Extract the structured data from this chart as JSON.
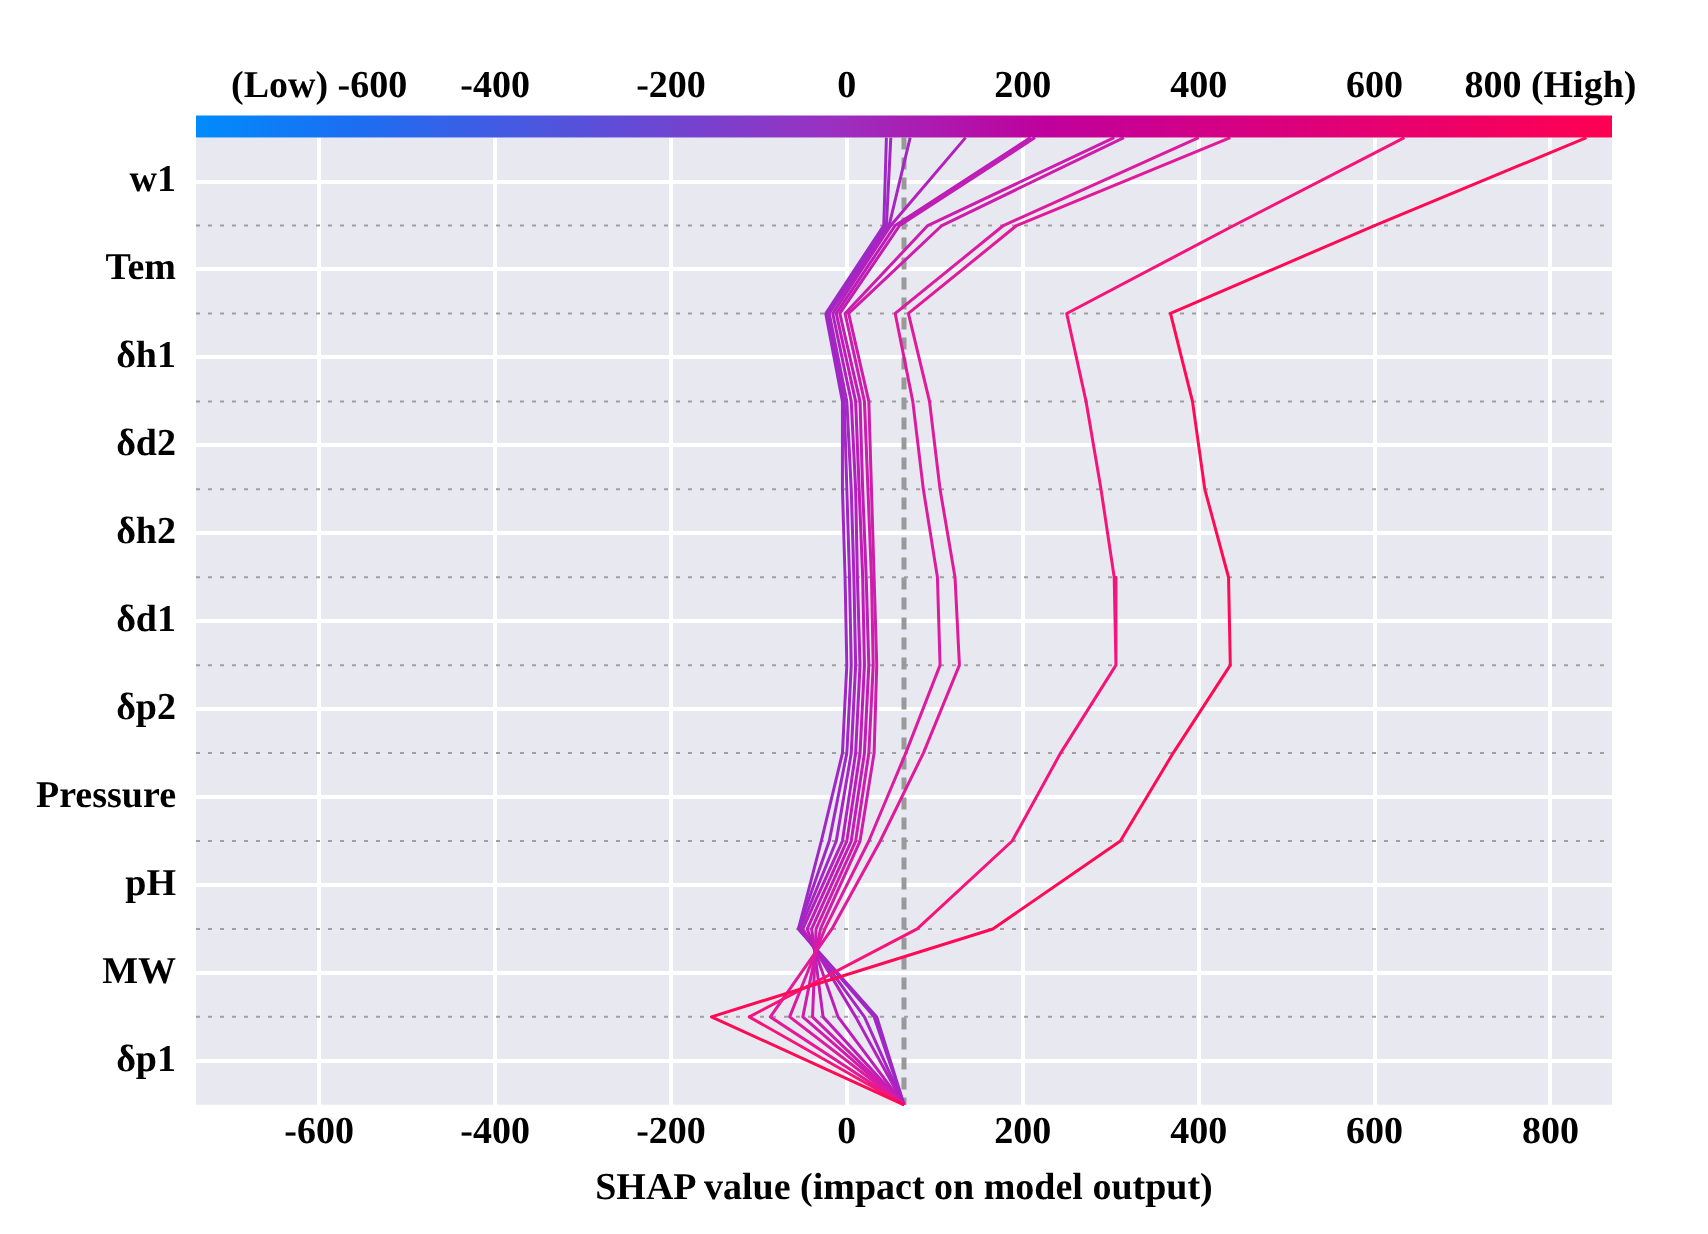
{
  "chart_data": {
    "type": "line",
    "orientation": "horizontal",
    "xlabel": "SHAP value (impact on model output)",
    "categories": [
      null,
      "w1",
      null,
      "Tem",
      null,
      "δh1",
      null,
      "δd2",
      null,
      "δh2",
      null,
      "δd1",
      null,
      "δp2",
      null,
      "Pressure",
      null,
      "pH",
      null,
      "MW",
      null,
      "δp1",
      null
    ],
    "xlim": [
      -740,
      870
    ],
    "xticks": [
      -600,
      -400,
      -200,
      0,
      200,
      400,
      600,
      800
    ],
    "x2lim": [
      -740,
      870
    ],
    "x2ticks": [
      {
        "value": -600,
        "label": "(Low) -600"
      },
      -400,
      -200,
      0,
      200,
      400,
      600,
      {
        "value": 800,
        "label": "800 (High)"
      }
    ],
    "grid": true,
    "legend": false,
    "marker": "none",
    "line_style": "solid",
    "ref_lines": [
      {
        "axis": "x",
        "value": 65,
        "color": "#999999",
        "line_style": "dashed"
      }
    ],
    "series": [
      {
        "color": "#ff0a55",
        "values": [
          841,
          null,
          600,
          null,
          368,
          null,
          393,
          null,
          407,
          null,
          434,
          null,
          436,
          null,
          371,
          null,
          311,
          null,
          166,
          null,
          -154,
          null,
          65
        ]
      },
      {
        "color": "#f5157a",
        "values": [
          634,
          null,
          440,
          null,
          250,
          null,
          272,
          null,
          289,
          null,
          304,
          null,
          306,
          null,
          243,
          null,
          188,
          null,
          80,
          null,
          -111,
          null,
          65
        ]
      },
      {
        "color": "#e01a98",
        "values": [
          436,
          null,
          193,
          null,
          70,
          null,
          94,
          null,
          106,
          null,
          123,
          null,
          128,
          null,
          87,
          null,
          38,
          null,
          -17,
          null,
          -87,
          null,
          65
        ]
      },
      {
        "color": "#db1c9f",
        "values": [
          400,
          null,
          178,
          null,
          55,
          null,
          75,
          null,
          87,
          null,
          103,
          null,
          106,
          null,
          67,
          null,
          25,
          null,
          -25,
          null,
          -65,
          null,
          65
        ]
      },
      {
        "color": "#cf1dab",
        "values": [
          315,
          null,
          108,
          null,
          2,
          null,
          25,
          null,
          28,
          null,
          31,
          null,
          34,
          null,
          31,
          null,
          15,
          null,
          -30,
          null,
          -50,
          null,
          65
        ]
      },
      {
        "color": "#cd1dac",
        "values": [
          304,
          null,
          92,
          null,
          -2,
          null,
          20,
          null,
          24,
          null,
          28,
          null,
          30,
          null,
          25,
          null,
          10,
          null,
          -35,
          null,
          -39,
          null,
          65
        ]
      },
      {
        "color": "#c01cb6",
        "values": [
          214,
          null,
          60,
          null,
          -8,
          null,
          15,
          null,
          18,
          null,
          22,
          null,
          25,
          null,
          20,
          null,
          5,
          null,
          -40,
          null,
          -27,
          null,
          65
        ]
      },
      {
        "color": "#bf1cb7",
        "values": [
          209,
          null,
          55,
          null,
          -12,
          null,
          10,
          null,
          14,
          null,
          18,
          null,
          20,
          null,
          15,
          null,
          0,
          null,
          -45,
          null,
          -10,
          null,
          65
        ]
      },
      {
        "color": "#b220bd",
        "values": [
          135,
          null,
          50,
          null,
          -16,
          null,
          5,
          null,
          10,
          null,
          12,
          null,
          15,
          null,
          10,
          null,
          -5,
          null,
          -50,
          null,
          10,
          null,
          65
        ]
      },
      {
        "color": "#a526c2",
        "values": [
          72,
          null,
          48,
          null,
          -20,
          null,
          0,
          null,
          5,
          null,
          8,
          null,
          10,
          null,
          5,
          null,
          -12,
          null,
          -53,
          null,
          20,
          null,
          65
        ]
      },
      {
        "color": "#a027c4",
        "values": [
          50,
          null,
          45,
          null,
          -22,
          null,
          -3,
          null,
          0,
          null,
          3,
          null,
          5,
          null,
          0,
          null,
          -20,
          null,
          -55,
          null,
          31,
          null,
          65
        ]
      },
      {
        "color": "#9f28c5",
        "values": [
          45,
          null,
          42,
          null,
          -24,
          null,
          -5,
          null,
          -5,
          null,
          -2,
          null,
          0,
          null,
          -5,
          null,
          -29,
          null,
          -55,
          null,
          34,
          null,
          65
        ]
      }
    ]
  }
}
